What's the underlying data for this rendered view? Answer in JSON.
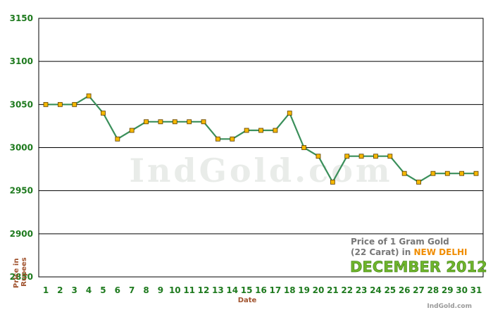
{
  "chart_data": {
    "type": "line",
    "title": "",
    "xlabel": "Date",
    "ylabel_lines": [
      "Price in",
      "Rupees"
    ],
    "ylim": [
      2850,
      3150
    ],
    "yticks": [
      2850,
      2900,
      2950,
      3000,
      3050,
      3100,
      3150
    ],
    "grid": true,
    "x": [
      1,
      2,
      3,
      4,
      5,
      6,
      7,
      8,
      9,
      10,
      11,
      12,
      13,
      14,
      15,
      16,
      17,
      18,
      19,
      20,
      21,
      22,
      23,
      24,
      25,
      26,
      27,
      28,
      29,
      30,
      31
    ],
    "series": [
      {
        "values": [
          3050,
          3050,
          3050,
          3060,
          3040,
          3010,
          3020,
          3030,
          3030,
          3030,
          3030,
          3030,
          3010,
          3010,
          3020,
          3020,
          3020,
          3040,
          3000,
          2990,
          2960,
          2990,
          2990,
          2990,
          2990,
          2970,
          2960,
          2970,
          2970,
          2970,
          2970
        ]
      }
    ],
    "legend": {
      "line1": "Price of 1 Gram Gold",
      "line2_prefix": "(22 Carat) in ",
      "city": "NEW DELHI",
      "month": "DECEMBER 2012",
      "placement": "bottom-right"
    },
    "watermark": "IndGold.com",
    "source": "IndGold.com",
    "colors": {
      "line": "#3a8f5a",
      "marker_fill": "#f5b800",
      "marker_stroke": "#5a3d00",
      "tick_text": "#1e7a1e",
      "axis_label": "#a0522d",
      "city": "#f08c00",
      "month": "#6fb52c"
    }
  }
}
